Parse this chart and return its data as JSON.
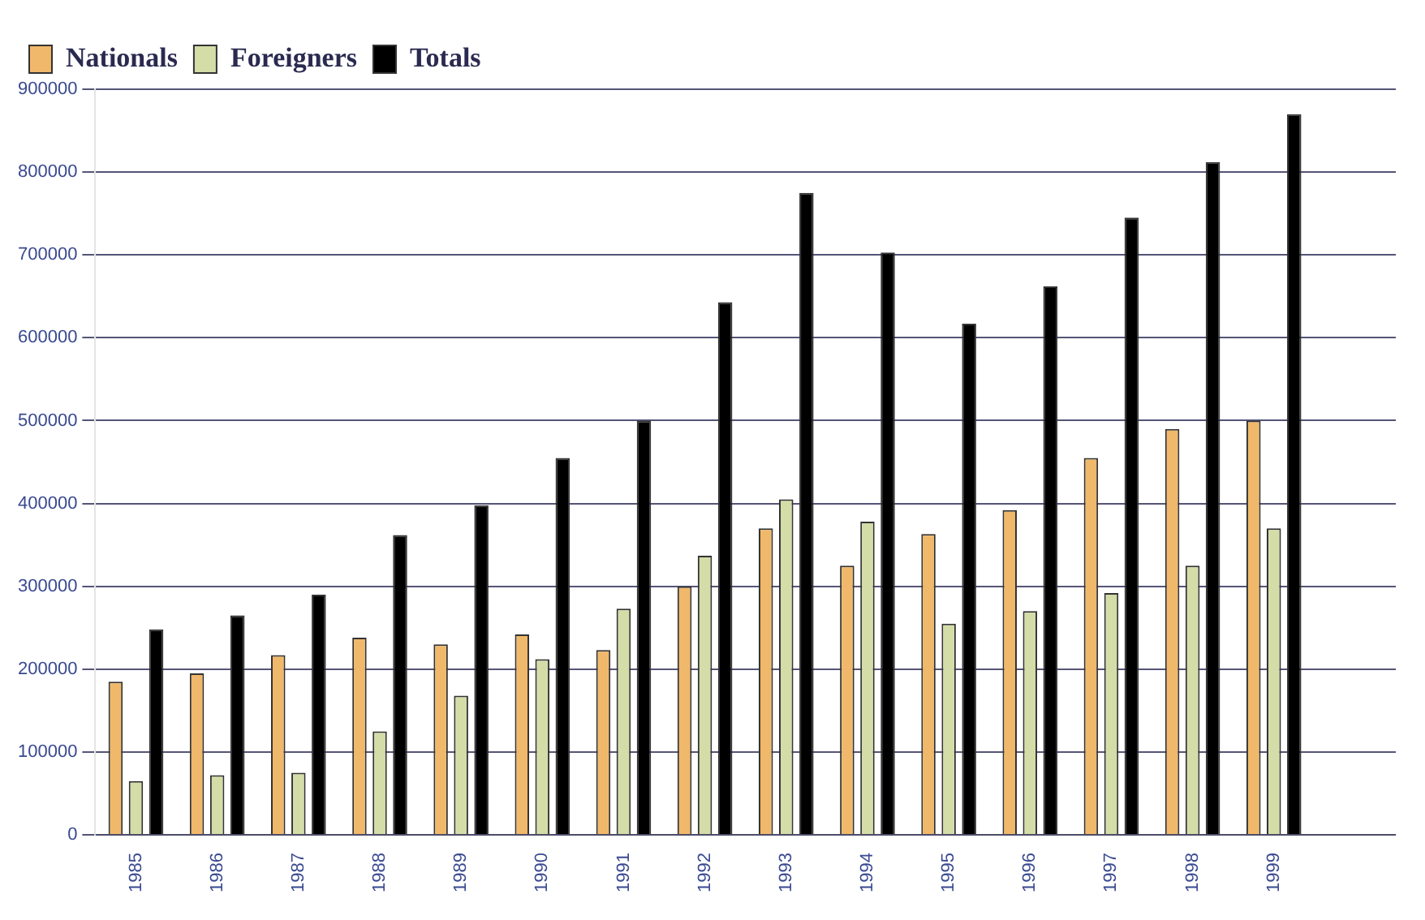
{
  "chart_data": {
    "type": "bar",
    "categories": [
      "1985",
      "1986",
      "1987",
      "1988",
      "1989",
      "1990",
      "1991",
      "1992",
      "1993",
      "1994",
      "1995",
      "1996",
      "1997",
      "1998",
      "1999",
      null
    ],
    "series": [
      {
        "name": "Nationals",
        "color": "#f0b86a",
        "values": [
          185000,
          195000,
          217000,
          238000,
          230000,
          242000,
          223000,
          300000,
          370000,
          325000,
          363000,
          392000,
          455000,
          490000,
          500000,
          null
        ]
      },
      {
        "name": "Foreigners",
        "color": "#d4dca8",
        "values": [
          65000,
          72000,
          75000,
          125000,
          168000,
          212000,
          273000,
          337000,
          405000,
          378000,
          255000,
          270000,
          292000,
          325000,
          370000,
          null
        ]
      },
      {
        "name": "Totals",
        "color": "#000000",
        "values": [
          248000,
          265000,
          290000,
          362000,
          398000,
          455000,
          500000,
          643000,
          775000,
          703000,
          617000,
          662000,
          745000,
          812000,
          870000,
          null
        ]
      }
    ],
    "ylim": [
      0,
      900000
    ],
    "yticks": [
      0,
      100000,
      200000,
      300000,
      400000,
      500000,
      600000,
      700000,
      800000,
      900000
    ],
    "grid": "y",
    "legend": "top left"
  }
}
